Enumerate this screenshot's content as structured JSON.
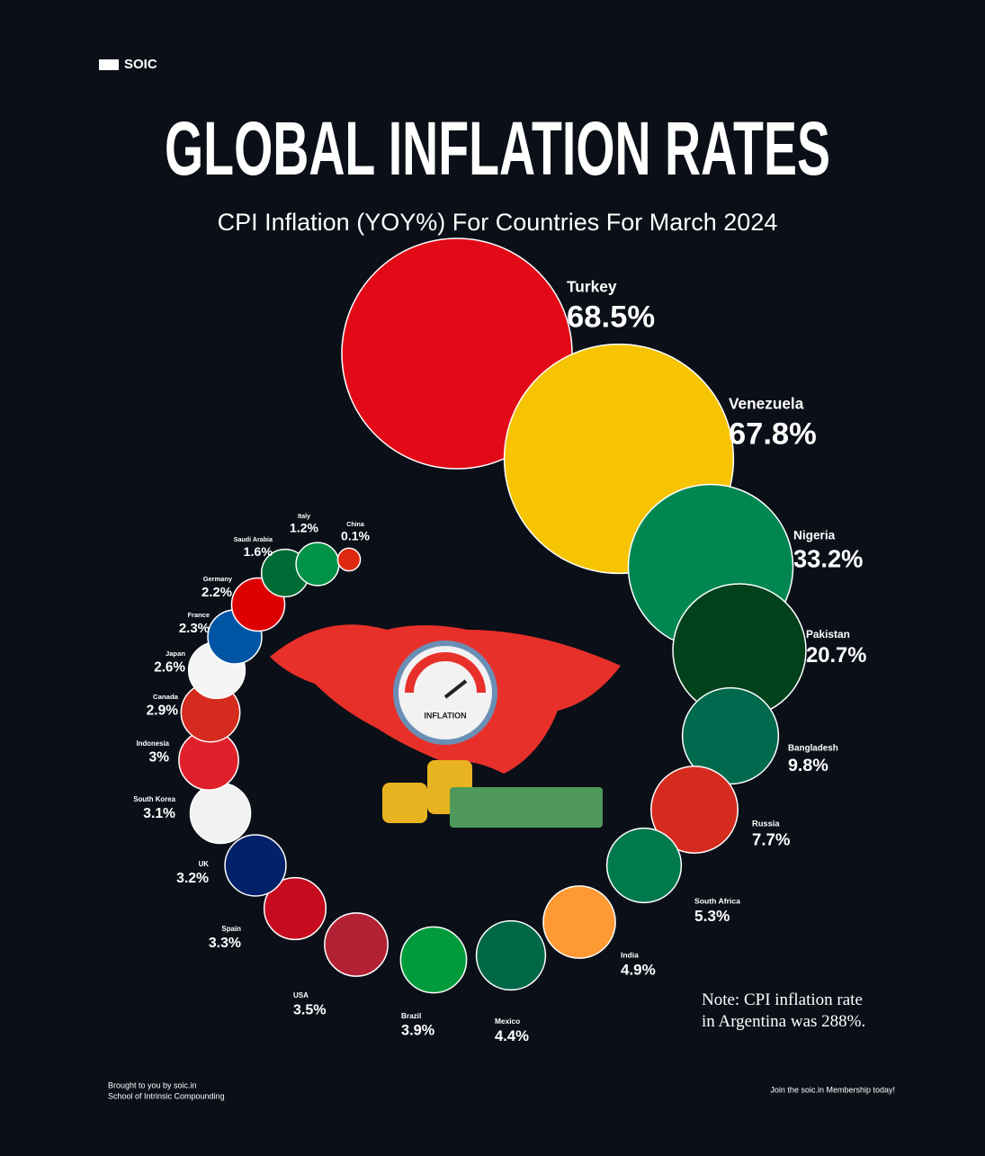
{
  "logo": "SOIC",
  "chart_data": {
    "type": "bubble",
    "title": "GLOBAL INFLATION RATES",
    "subtitle": "CPI Inflation (YOY%) For Countries For March 2024",
    "illustration_label": "INFLATION",
    "categories": [
      "Turkey",
      "Venezuela",
      "Nigeria",
      "Pakistan",
      "Bangladesh",
      "Russia",
      "South Africa",
      "India",
      "Mexico",
      "Brazil",
      "USA",
      "Spain",
      "UK",
      "South Korea",
      "Indonesia",
      "Canada",
      "Japan",
      "France",
      "Germany",
      "Saudi Arabia",
      "Italy",
      "China"
    ],
    "values": [
      68.5,
      67.8,
      33.2,
      20.7,
      9.8,
      7.7,
      5.3,
      4.9,
      4.4,
      3.9,
      3.5,
      3.3,
      3.2,
      3.1,
      3,
      2.9,
      2.6,
      2.3,
      2.2,
      1.6,
      1.2,
      0.1
    ],
    "value_labels": [
      "68.5%",
      "67.8%",
      "33.2%",
      "20.7%",
      "9.8%",
      "7.7%",
      "5.3%",
      "4.9%",
      "4.4%",
      "3.9%",
      "3.5%",
      "3.3%",
      "3.2%",
      "3.1%",
      "3%",
      "2.9%",
      "2.6%",
      "2.3%",
      "2.2%",
      "1.6%",
      "1.2%",
      "0.1%"
    ],
    "colors": [
      "#e30a17",
      "#f6c400",
      "#008751",
      "#01411c",
      "#006a4e",
      "#d52b1e",
      "#007a4d",
      "#ff9933",
      "#006847",
      "#009c3b",
      "#b22234",
      "#c60b1e",
      "#012169",
      "#f2f2f2",
      "#e0202a",
      "#d52b1e",
      "#f5f5f5",
      "#0055a4",
      "#dd0000",
      "#006c35",
      "#009246",
      "#de2910"
    ],
    "note": "Note: CPI inflation rate in Argentina was 288%."
  },
  "footer": {
    "left_line1": "Brought to you by soic.in",
    "left_line2": "School of Intrinsic Compounding",
    "right": "Join the soic.in Membership today!"
  }
}
